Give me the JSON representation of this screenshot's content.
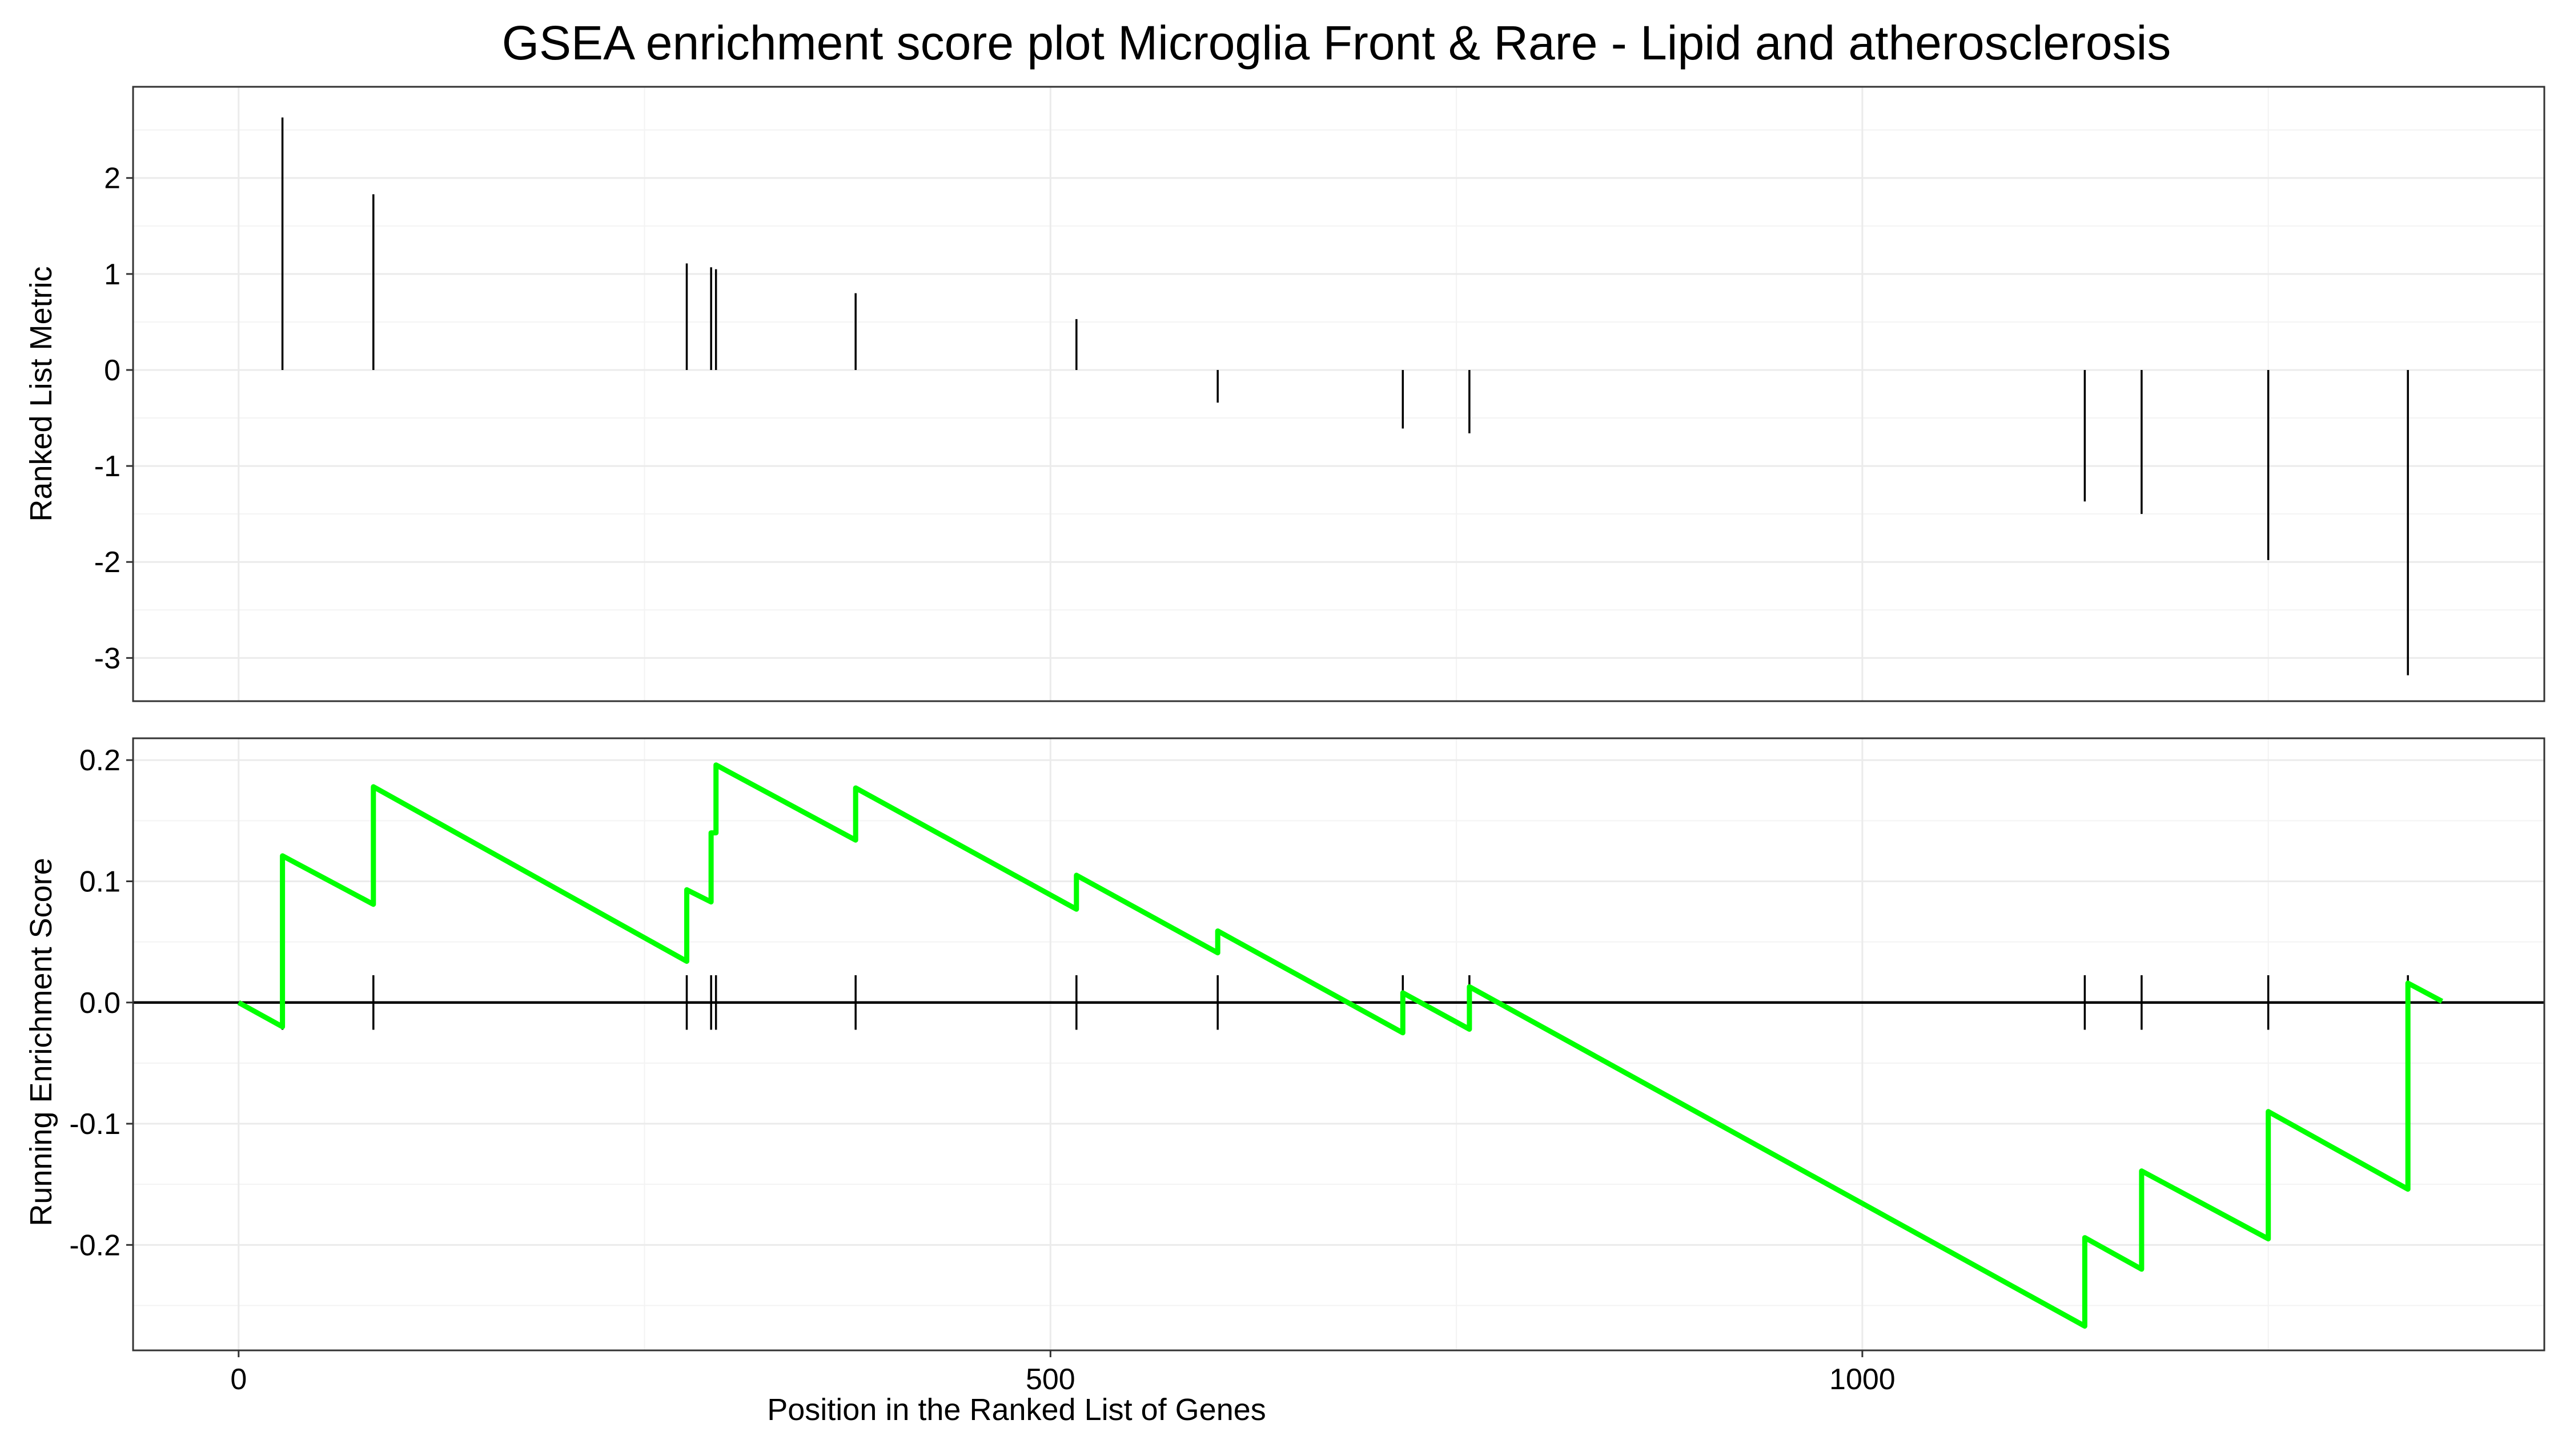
{
  "chart_data": {
    "type": "line",
    "title": "GSEA enrichment score plot Microglia Front & Rare - Lipid and atherosclerosis",
    "xlabel": "Position in the Ranked List of Genes",
    "xlim": [
      -65,
      1420
    ],
    "x_ticks": [
      0,
      500,
      1000
    ],
    "x_tick_labels": [
      "0",
      "500",
      "1000"
    ],
    "total_genes": 1357,
    "grid": true,
    "panels": [
      {
        "id": "ranked-metric",
        "ylabel": "Ranked List Metric",
        "ylim": [
          -3.45,
          2.95
        ],
        "y_ticks": [
          2,
          1,
          0,
          -1,
          -2,
          -3
        ],
        "y_tick_labels": [
          "2",
          "1",
          "0",
          "-1",
          "-2",
          "-3"
        ],
        "bars": [
          {
            "x": 27,
            "y": 2.63
          },
          {
            "x": 83,
            "y": 1.83
          },
          {
            "x": 276,
            "y": 1.11
          },
          {
            "x": 291,
            "y": 1.07
          },
          {
            "x": 294,
            "y": 1.05
          },
          {
            "x": 380,
            "y": 0.8
          },
          {
            "x": 516,
            "y": 0.53
          },
          {
            "x": 603,
            "y": -0.34
          },
          {
            "x": 717,
            "y": -0.61
          },
          {
            "x": 758,
            "y": -0.66
          },
          {
            "x": 1137,
            "y": -1.37
          },
          {
            "x": 1172,
            "y": -1.5
          },
          {
            "x": 1250,
            "y": -1.98
          },
          {
            "x": 1336,
            "y": -3.18
          }
        ]
      },
      {
        "id": "running-es",
        "ylabel": "Running Enrichment Score",
        "ylim": [
          -0.287,
          0.218
        ],
        "y_ticks": [
          0.2,
          0.1,
          0.0,
          -0.1,
          -0.2
        ],
        "y_tick_labels": [
          "0.2",
          "0.1",
          "0.0",
          "-0.1",
          "-0.2"
        ],
        "line_color": "#00ff00",
        "zero_line": true,
        "hits": [
          27,
          83,
          276,
          291,
          294,
          380,
          516,
          603,
          717,
          758,
          1137,
          1172,
          1250,
          1336
        ],
        "series": [
          {
            "x": [
              0,
              27,
              27,
              83,
              83,
              276,
              276,
              291,
              291,
              294,
              294,
              380,
              380,
              516,
              516,
              603,
              603,
              717,
              717,
              758,
              758,
              1137,
              1137,
              1172,
              1172,
              1250,
              1250,
              1336,
              1336,
              1357
            ],
            "y": [
              0.0,
              -0.02,
              0.121,
              0.081,
              0.178,
              0.034,
              0.093,
              0.083,
              0.14,
              0.14,
              0.196,
              0.134,
              0.177,
              0.077,
              0.105,
              0.041,
              0.059,
              -0.025,
              0.008,
              -0.022,
              0.013,
              -0.267,
              -0.194,
              -0.22,
              -0.139,
              -0.195,
              -0.09,
              -0.154,
              0.016,
              0.001
            ]
          }
        ]
      }
    ]
  }
}
